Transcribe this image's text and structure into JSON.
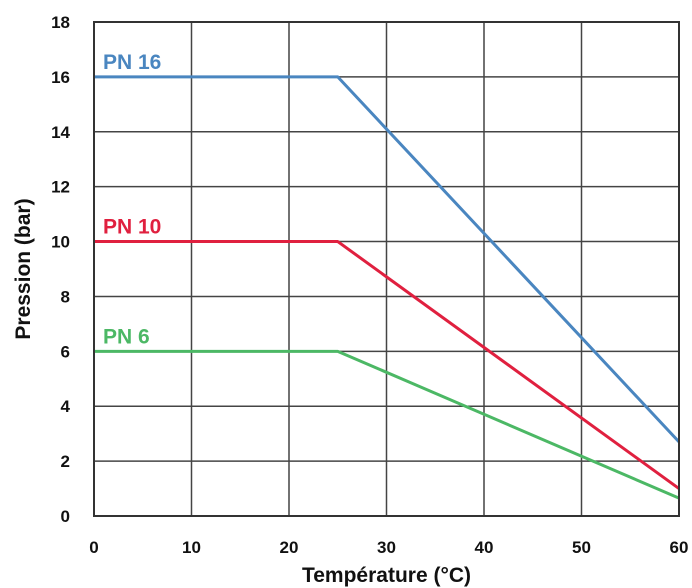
{
  "chart_data": {
    "type": "line",
    "title": "",
    "xlabel": "Température (°C)",
    "ylabel": "Pression (bar)",
    "xlim": [
      0,
      60
    ],
    "ylim": [
      0,
      18
    ],
    "x_ticks": [
      "0",
      "10",
      "20",
      "30",
      "40",
      "50",
      "60"
    ],
    "y_ticks": [
      "0",
      "2",
      "4",
      "6",
      "8",
      "10",
      "12",
      "14",
      "16",
      "18"
    ],
    "grid": true,
    "series": [
      {
        "name": "PN 16",
        "color": "#4a86c0",
        "x": [
          0,
          25,
          60
        ],
        "y": [
          16,
          16,
          2.7
        ]
      },
      {
        "name": "PN 10",
        "color": "#e0203f",
        "x": [
          0,
          25,
          60
        ],
        "y": [
          10,
          10,
          1.0
        ]
      },
      {
        "name": "PN 6",
        "color": "#4cb865",
        "x": [
          0,
          25,
          60
        ],
        "y": [
          6,
          6,
          0.65
        ]
      }
    ]
  }
}
